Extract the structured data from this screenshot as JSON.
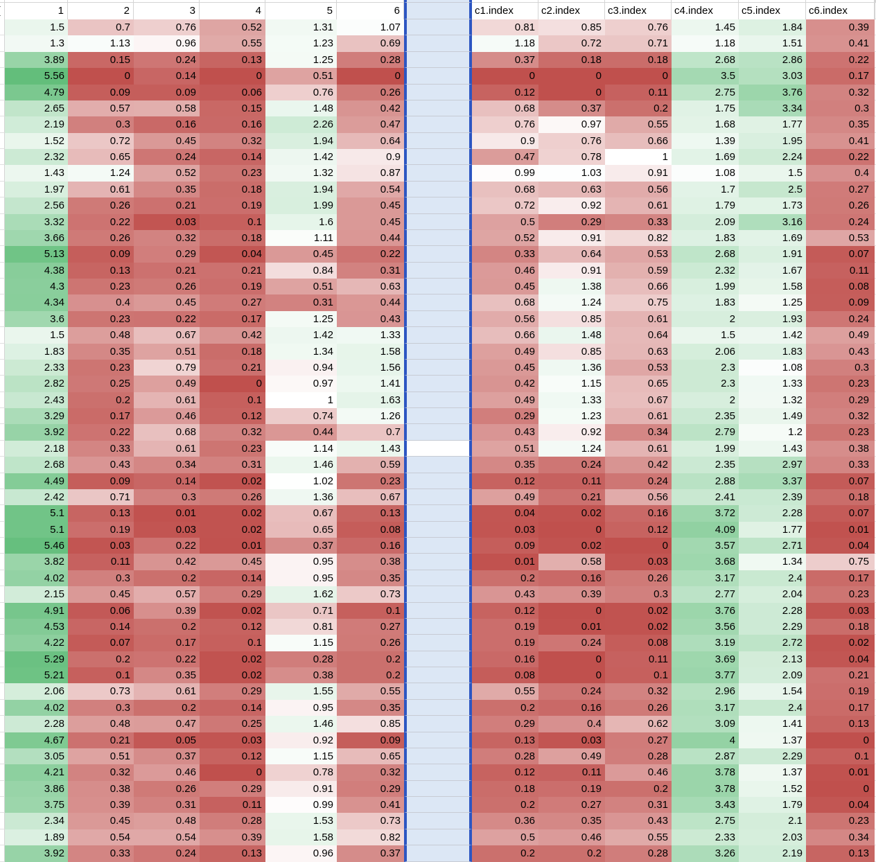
{
  "sheet": {
    "corner_partial_glyph": "(",
    "left_headers": [
      "1",
      "2",
      "3",
      "4",
      "5",
      "6"
    ],
    "right_headers": [
      "c1.index",
      "c2.index",
      "c3.index",
      "c4.index",
      "c5.index",
      "c6.index"
    ],
    "selected_column": {
      "position": "between column 6 and c1.index",
      "fill": "#dce7f5",
      "border": "#2d56c2",
      "plain_white_row": 27
    },
    "color_scale": {
      "min_value": 0,
      "mid_value": 1,
      "max_value": 5.56,
      "min_color": "#c0504d",
      "mid_color": "#ffffff",
      "max_color": "#63be7b"
    },
    "grid_color": "#d4d4d4",
    "rows": [
      [
        1.5,
        0.7,
        0.76,
        0.52,
        1.31,
        1.07,
        0.81,
        0.85,
        0.76,
        1.45,
        1.84,
        0.39
      ],
      [
        1.3,
        1.13,
        0.96,
        0.55,
        1.23,
        0.69,
        1.18,
        0.72,
        0.71,
        1.18,
        1.51,
        0.41
      ],
      [
        3.89,
        0.15,
        0.24,
        0.13,
        1.25,
        0.28,
        0.37,
        0.18,
        0.18,
        2.68,
        2.86,
        0.22
      ],
      [
        5.56,
        0,
        0.14,
        0,
        0.51,
        0,
        0,
        0,
        0,
        3.5,
        3.03,
        0.17
      ],
      [
        4.79,
        0.09,
        0.09,
        0.06,
        0.76,
        0.26,
        0.12,
        0,
        0.11,
        2.75,
        3.76,
        0.32
      ],
      [
        2.65,
        0.57,
        0.58,
        0.15,
        1.48,
        0.42,
        0.68,
        0.37,
        0.2,
        1.75,
        3.34,
        0.3
      ],
      [
        2.19,
        0.3,
        0.16,
        0.16,
        2.26,
        0.47,
        0.76,
        0.97,
        0.55,
        1.68,
        1.77,
        0.35
      ],
      [
        1.52,
        0.72,
        0.45,
        0.32,
        1.94,
        0.64,
        0.9,
        0.76,
        0.66,
        1.39,
        1.95,
        0.41
      ],
      [
        2.32,
        0.65,
        0.24,
        0.14,
        1.42,
        0.9,
        0.47,
        0.78,
        1,
        1.69,
        2.24,
        0.22
      ],
      [
        1.43,
        1.24,
        0.52,
        0.23,
        1.32,
        0.87,
        0.99,
        1.03,
        0.91,
        1.08,
        1.5,
        0.4
      ],
      [
        1.97,
        0.61,
        0.35,
        0.18,
        1.94,
        0.54,
        0.68,
        0.63,
        0.56,
        1.7,
        2.5,
        0.27
      ],
      [
        2.56,
        0.26,
        0.21,
        0.19,
        1.99,
        0.45,
        0.72,
        0.92,
        0.61,
        1.79,
        1.73,
        0.26
      ],
      [
        3.32,
        0.22,
        0.03,
        0.1,
        1.6,
        0.45,
        0.5,
        0.29,
        0.33,
        2.09,
        3.16,
        0.24
      ],
      [
        3.66,
        0.26,
        0.32,
        0.18,
        1.11,
        0.44,
        0.52,
        0.91,
        0.82,
        1.83,
        1.69,
        0.53
      ],
      [
        5.13,
        0.09,
        0.29,
        0.04,
        0.45,
        0.22,
        0.33,
        0.64,
        0.53,
        2.68,
        1.91,
        0.07
      ],
      [
        4.38,
        0.13,
        0.21,
        0.21,
        0.84,
        0.31,
        0.46,
        0.91,
        0.59,
        2.32,
        1.67,
        0.11
      ],
      [
        4.3,
        0.23,
        0.26,
        0.19,
        0.51,
        0.63,
        0.45,
        1.38,
        0.66,
        1.99,
        1.58,
        0.08
      ],
      [
        4.34,
        0.4,
        0.45,
        0.27,
        0.31,
        0.44,
        0.68,
        1.24,
        0.75,
        1.83,
        1.25,
        0.09
      ],
      [
        3.6,
        0.23,
        0.22,
        0.17,
        1.25,
        0.43,
        0.56,
        0.85,
        0.61,
        2,
        1.93,
        0.24
      ],
      [
        1.5,
        0.48,
        0.67,
        0.42,
        1.42,
        1.33,
        0.66,
        1.48,
        0.64,
        1.5,
        1.42,
        0.49
      ],
      [
        1.83,
        0.35,
        0.51,
        0.18,
        1.34,
        1.58,
        0.49,
        0.85,
        0.63,
        2.06,
        1.83,
        0.43
      ],
      [
        2.33,
        0.23,
        0.79,
        0.21,
        0.94,
        1.56,
        0.45,
        1.36,
        0.53,
        2.3,
        1.08,
        0.3
      ],
      [
        2.82,
        0.25,
        0.49,
        0,
        0.97,
        1.41,
        0.42,
        1.15,
        0.65,
        2.3,
        1.33,
        0.23
      ],
      [
        2.43,
        0.2,
        0.61,
        0.1,
        1,
        1.63,
        0.49,
        1.33,
        0.67,
        2,
        1.32,
        0.29
      ],
      [
        3.29,
        0.17,
        0.46,
        0.12,
        0.74,
        1.26,
        0.29,
        1.23,
        0.61,
        2.35,
        1.49,
        0.32
      ],
      [
        3.92,
        0.22,
        0.68,
        0.32,
        0.44,
        0.7,
        0.43,
        0.92,
        0.34,
        2.79,
        1.2,
        0.23
      ],
      [
        2.18,
        0.33,
        0.61,
        0.23,
        1.14,
        1.43,
        0.51,
        1.24,
        0.61,
        1.99,
        1.43,
        0.38
      ],
      [
        2.68,
        0.43,
        0.34,
        0.31,
        1.46,
        0.59,
        0.35,
        0.24,
        0.42,
        2.35,
        2.97,
        0.33
      ],
      [
        4.49,
        0.09,
        0.14,
        0.02,
        1.02,
        0.23,
        0.12,
        0.11,
        0.24,
        2.88,
        3.37,
        0.07
      ],
      [
        2.42,
        0.71,
        0.3,
        0.26,
        1.36,
        0.67,
        0.49,
        0.21,
        0.56,
        2.41,
        2.39,
        0.18
      ],
      [
        5.1,
        0.13,
        0.01,
        0.02,
        0.67,
        0.13,
        0.04,
        0.02,
        0.16,
        3.72,
        2.28,
        0.07
      ],
      [
        5.1,
        0.19,
        0.03,
        0.02,
        0.65,
        0.08,
        0.03,
        0,
        0.12,
        4.09,
        1.77,
        0.01
      ],
      [
        5.46,
        0.03,
        0.22,
        0.01,
        0.37,
        0.16,
        0.09,
        0.02,
        0,
        3.57,
        2.71,
        0.04
      ],
      [
        3.82,
        0.11,
        0.42,
        0.45,
        0.95,
        0.38,
        0.01,
        0.58,
        0.03,
        3.68,
        1.34,
        0.75
      ],
      [
        4.02,
        0.3,
        0.2,
        0.14,
        0.95,
        0.35,
        0.2,
        0.16,
        0.26,
        3.17,
        2.4,
        0.17
      ],
      [
        2.15,
        0.45,
        0.57,
        0.29,
        1.62,
        0.73,
        0.43,
        0.39,
        0.3,
        2.77,
        2.04,
        0.23
      ],
      [
        4.91,
        0.06,
        0.39,
        0.02,
        0.71,
        0.1,
        0.12,
        0,
        0.02,
        3.76,
        2.28,
        0.03
      ],
      [
        4.53,
        0.14,
        0.2,
        0.12,
        0.81,
        0.27,
        0.19,
        0.01,
        0.02,
        3.56,
        2.29,
        0.18
      ],
      [
        4.22,
        0.07,
        0.17,
        0.1,
        1.15,
        0.26,
        0.19,
        0.24,
        0.08,
        3.19,
        2.72,
        0.02
      ],
      [
        5.29,
        0.2,
        0.22,
        0.02,
        0.28,
        0.2,
        0.16,
        0,
        0.11,
        3.69,
        2.13,
        0.04
      ],
      [
        5.21,
        0.1,
        0.35,
        0.02,
        0.38,
        0.2,
        0.08,
        0,
        0.1,
        3.77,
        2.09,
        0.21
      ],
      [
        2.06,
        0.73,
        0.61,
        0.29,
        1.55,
        0.55,
        0.55,
        0.24,
        0.32,
        2.96,
        1.54,
        0.19
      ],
      [
        4.02,
        0.3,
        0.2,
        0.14,
        0.95,
        0.35,
        0.2,
        0.16,
        0.26,
        3.17,
        2.4,
        0.17
      ],
      [
        2.28,
        0.48,
        0.47,
        0.25,
        1.46,
        0.85,
        0.29,
        0.4,
        0.62,
        3.09,
        1.41,
        0.13
      ],
      [
        4.67,
        0.21,
        0.05,
        0.03,
        0.92,
        0.09,
        0.13,
        0.03,
        0.27,
        4,
        1.37,
        0
      ],
      [
        3.05,
        0.51,
        0.37,
        0.12,
        1.15,
        0.65,
        0.28,
        0.49,
        0.28,
        2.87,
        2.29,
        0.1
      ],
      [
        4.21,
        0.32,
        0.46,
        0,
        0.78,
        0.32,
        0.12,
        0.11,
        0.46,
        3.78,
        1.37,
        0.01
      ],
      [
        3.86,
        0.38,
        0.26,
        0.29,
        0.91,
        0.29,
        0.18,
        0.19,
        0.2,
        3.78,
        1.52,
        0
      ],
      [
        3.75,
        0.39,
        0.31,
        0.11,
        0.99,
        0.41,
        0.2,
        0.27,
        0.31,
        3.43,
        1.79,
        0.04
      ],
      [
        2.34,
        0.45,
        0.48,
        0.28,
        1.53,
        0.73,
        0.36,
        0.35,
        0.43,
        2.75,
        2.1,
        0.23
      ],
      [
        1.89,
        0.54,
        0.54,
        0.39,
        1.58,
        0.82,
        0.5,
        0.46,
        0.55,
        2.33,
        2.03,
        0.34
      ],
      [
        3.92,
        0.33,
        0.24,
        0.13,
        0.96,
        0.37,
        0.2,
        0.2,
        0.28,
        3.26,
        2.19,
        0.13
      ]
    ]
  }
}
